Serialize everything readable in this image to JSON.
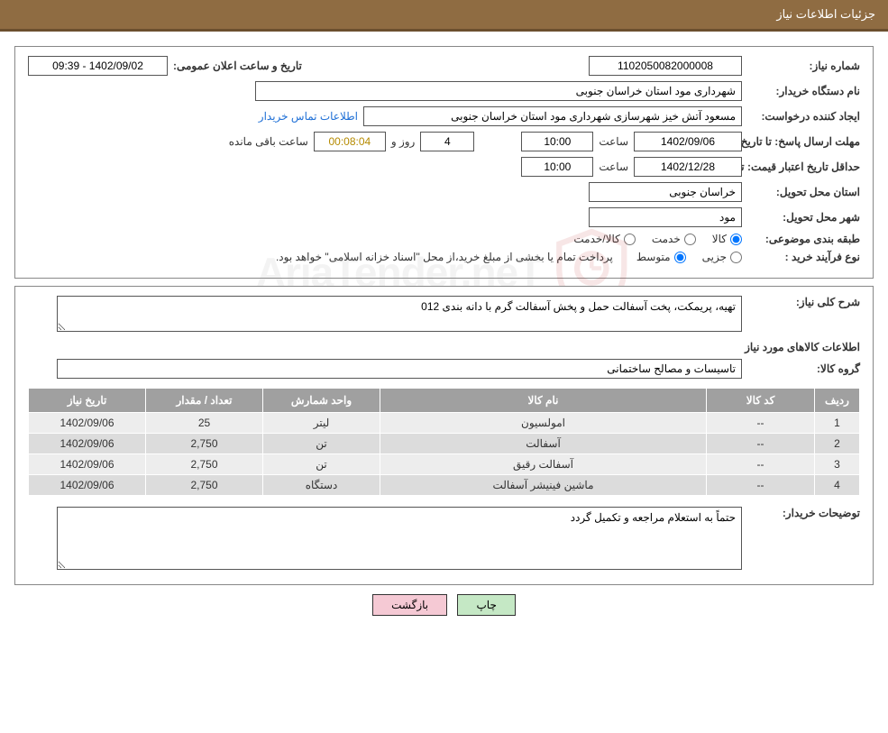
{
  "title_bar": "جزئیات اطلاعات نیاز",
  "fields": {
    "need_no_label": "شماره نیاز:",
    "need_no": "1102050082000008",
    "announce_label": "تاریخ و ساعت اعلان عمومی:",
    "announce_val": "09:39 - 1402/09/02",
    "buyer_label": "نام دستگاه خریدار:",
    "buyer_val": "شهرداری مود استان خراسان جنوبی",
    "creator_label": "ایجاد کننده درخواست:",
    "creator_val": "مسعود آتش خیز شهرسازی شهرداری مود استان خراسان جنوبی",
    "contact_link": "اطلاعات تماس خریدار",
    "deadline_send_label": "مهلت ارسال پاسخ: تا تاریخ:",
    "deadline_send_date": "1402/09/06",
    "time_label": "ساعت",
    "deadline_send_time": "10:00",
    "days_and": "روز و",
    "days_val": "4",
    "remaining_timer": "00:08:04",
    "remaining_label": "ساعت باقی مانده",
    "min_validity_label": "حداقل تاریخ اعتبار قیمت: تا تاریخ:",
    "min_validity_date": "1402/12/28",
    "min_validity_time": "10:00",
    "province_label": "استان محل تحویل:",
    "province_val": "خراسان جنوبی",
    "city_label": "شهر محل تحویل:",
    "city_val": "مود",
    "category_label": "طبقه بندی موضوعی:",
    "radio_goods": "کالا",
    "radio_service": "خدمت",
    "radio_goods_service": "کالا/خدمت",
    "process_label": "نوع فرآیند خرید :",
    "radio_partial": "جزیی",
    "radio_medium": "متوسط",
    "process_note": "پرداخت تمام یا بخشی از مبلغ خرید،از محل \"اسناد خزانه اسلامی\" خواهد بود.",
    "desc_label": "شرح کلی نیاز:",
    "desc_val": "تهیه، پریمکت، پخت آسفالت حمل و پخش آسفالت گرم با دانه بندی 012",
    "goods_heading": "اطلاعات کالاهای مورد نیاز",
    "group_label": "گروه کالا:",
    "group_val": "تاسیسات و مصالح ساختمانی",
    "buyer_note_label": "توضیحات خریدار:",
    "buyer_note_val": "حتماً به استعلام مراجعه و تکمیل گردد"
  },
  "table": {
    "columns": [
      "ردیف",
      "کد کالا",
      "نام کالا",
      "واحد شمارش",
      "تعداد / مقدار",
      "تاریخ نیاز"
    ],
    "rows": [
      [
        "1",
        "--",
        "امولسیون",
        "لیتر",
        "25",
        "1402/09/06"
      ],
      [
        "2",
        "--",
        "آسفالت",
        "تن",
        "2,750",
        "1402/09/06"
      ],
      [
        "3",
        "--",
        "آسفالت رقیق",
        "تن",
        "2,750",
        "1402/09/06"
      ],
      [
        "4",
        "--",
        "ماشین فینیشر آسفالت",
        "دستگاه",
        "2,750",
        "1402/09/06"
      ]
    ],
    "col_widths": [
      "50px",
      "120px",
      "auto",
      "130px",
      "130px",
      "130px"
    ],
    "header_bg": "#a0a0a0",
    "header_color": "#ffffff",
    "row_even_bg": "#ededed",
    "row_odd_bg": "#dcdcdc"
  },
  "buttons": {
    "print": "چاپ",
    "back": "بازگشت"
  },
  "watermark": "AriaTender.neT",
  "colors": {
    "title_bg": "#8f6c42",
    "title_border": "#6b4f2e",
    "link": "#1e6fd6",
    "btn_green": "#c5e8c5",
    "btn_pink": "#f5c9d4",
    "shield_stroke": "#c13b3b"
  }
}
